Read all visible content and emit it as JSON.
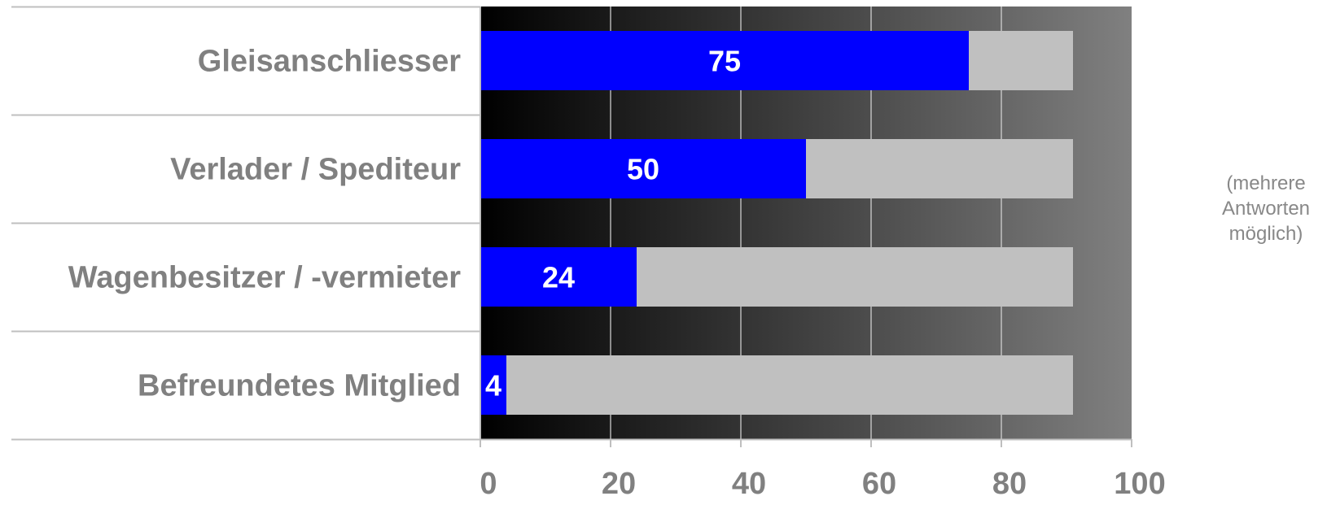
{
  "chart_data": {
    "type": "bar",
    "orientation": "horizontal",
    "stacked_background": true,
    "categories": [
      "Gleisanschliesser",
      "Verlader / Spediteur",
      "Wagenbesitzer / -vermieter",
      "Befreundetes Mitglied"
    ],
    "values": [
      75,
      50,
      24,
      4
    ],
    "bar_max": 91,
    "xlim": [
      0,
      100
    ],
    "xticks": [
      "0",
      "20",
      "40",
      "60",
      "80",
      "100"
    ],
    "grid": true,
    "data_labels": [
      "75",
      "50",
      "24",
      "4"
    ],
    "colors": {
      "bar": "#0000ff",
      "bar_background": "#c0c0c0",
      "plot_gradient_start": "#000000",
      "plot_gradient_end": "#808080",
      "text": "#808080"
    }
  },
  "note": {
    "line1": "(mehrere",
    "line2": "Antworten",
    "line3": "möglich)"
  }
}
